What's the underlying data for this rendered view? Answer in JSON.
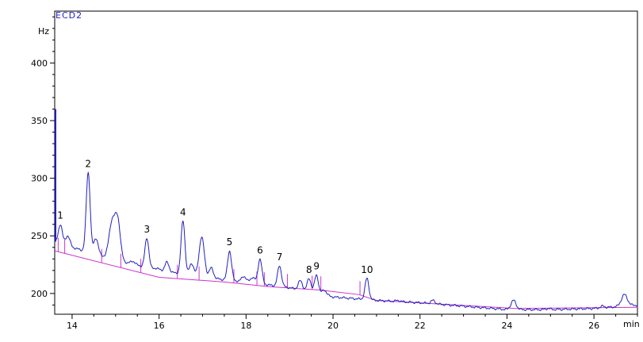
{
  "chart_data": {
    "type": "line",
    "series_title": "ECD2",
    "xlabel": "min",
    "ylabel": "Hz",
    "xlim": [
      13.6,
      27.0
    ],
    "ylim": [
      182,
      445
    ],
    "x_ticks": [
      "14",
      "16",
      "18",
      "20",
      "22",
      "24",
      "26"
    ],
    "y_ticks": [
      "200",
      "250",
      "300",
      "350",
      "400"
    ],
    "colors": {
      "signal": "#1f1fbf",
      "baseline": "#cc33cc",
      "axes": "#000000"
    },
    "peaks": [
      {
        "label": "1",
        "x": 13.73,
        "y": 260,
        "base": 236
      },
      {
        "label": "2",
        "x": 14.37,
        "y": 305,
        "base": 233
      },
      {
        "label": "3",
        "x": 15.72,
        "y": 248,
        "base": 222
      },
      {
        "label": "4",
        "x": 16.55,
        "y": 263,
        "base": 215
      },
      {
        "label": "5",
        "x": 17.62,
        "y": 237,
        "base": 210
      },
      {
        "label": "6",
        "x": 18.32,
        "y": 230,
        "base": 207
      },
      {
        "label": "7",
        "x": 18.77,
        "y": 224,
        "base": 205
      },
      {
        "label": "8",
        "x": 19.45,
        "y": 213,
        "base": 204
      },
      {
        "label": "9",
        "x": 19.62,
        "y": 216,
        "base": 203
      },
      {
        "label": "10",
        "x": 20.78,
        "y": 213,
        "base": 197
      }
    ],
    "minor_peaks": [
      {
        "x": 13.9,
        "y": 250,
        "w": 0.05
      },
      {
        "x": 14.55,
        "y": 248,
        "w": 0.05
      },
      {
        "x": 14.92,
        "y": 262,
        "w": 0.07
      },
      {
        "x": 15.05,
        "y": 262,
        "w": 0.06
      },
      {
        "x": 15.4,
        "y": 228,
        "w": 0.05
      },
      {
        "x": 15.95,
        "y": 222,
        "w": 0.05
      },
      {
        "x": 16.18,
        "y": 227,
        "w": 0.05
      },
      {
        "x": 16.75,
        "y": 226,
        "w": 0.05
      },
      {
        "x": 16.98,
        "y": 249,
        "w": 0.06
      },
      {
        "x": 17.2,
        "y": 222,
        "w": 0.05
      },
      {
        "x": 17.95,
        "y": 215,
        "w": 0.05
      },
      {
        "x": 18.15,
        "y": 214,
        "w": 0.05
      },
      {
        "x": 19.25,
        "y": 211,
        "w": 0.05
      },
      {
        "x": 19.8,
        "y": 203,
        "w": 0.05
      },
      {
        "x": 21.5,
        "y": 194,
        "w": 0.05
      },
      {
        "x": 22.3,
        "y": 194,
        "w": 0.05
      },
      {
        "x": 23.3,
        "y": 188,
        "w": 0.05
      },
      {
        "x": 24.15,
        "y": 194,
        "w": 0.06
      },
      {
        "x": 24.95,
        "y": 187,
        "w": 0.05
      },
      {
        "x": 26.2,
        "y": 189,
        "w": 0.05
      },
      {
        "x": 26.7,
        "y": 199,
        "w": 0.07
      }
    ],
    "trace_baseline": [
      [
        13.6,
        245
      ],
      [
        14.0,
        240
      ],
      [
        15.0,
        229
      ],
      [
        16.0,
        220
      ],
      [
        17.0,
        214
      ],
      [
        18.0,
        210
      ],
      [
        19.0,
        205
      ],
      [
        20.0,
        197
      ],
      [
        21.0,
        194
      ],
      [
        22.0,
        192
      ],
      [
        23.0,
        189
      ],
      [
        24.0,
        186
      ],
      [
        25.0,
        186
      ],
      [
        26.0,
        187
      ],
      [
        27.0,
        190
      ]
    ],
    "integration_baseline": [
      [
        13.6,
        237
      ],
      [
        16.0,
        214
      ],
      [
        17.5,
        210
      ],
      [
        18.5,
        206
      ],
      [
        19.7,
        203
      ],
      [
        20.6,
        199
      ],
      [
        21.0,
        194
      ],
      [
        24.2,
        187
      ],
      [
        27.0,
        188
      ]
    ]
  }
}
